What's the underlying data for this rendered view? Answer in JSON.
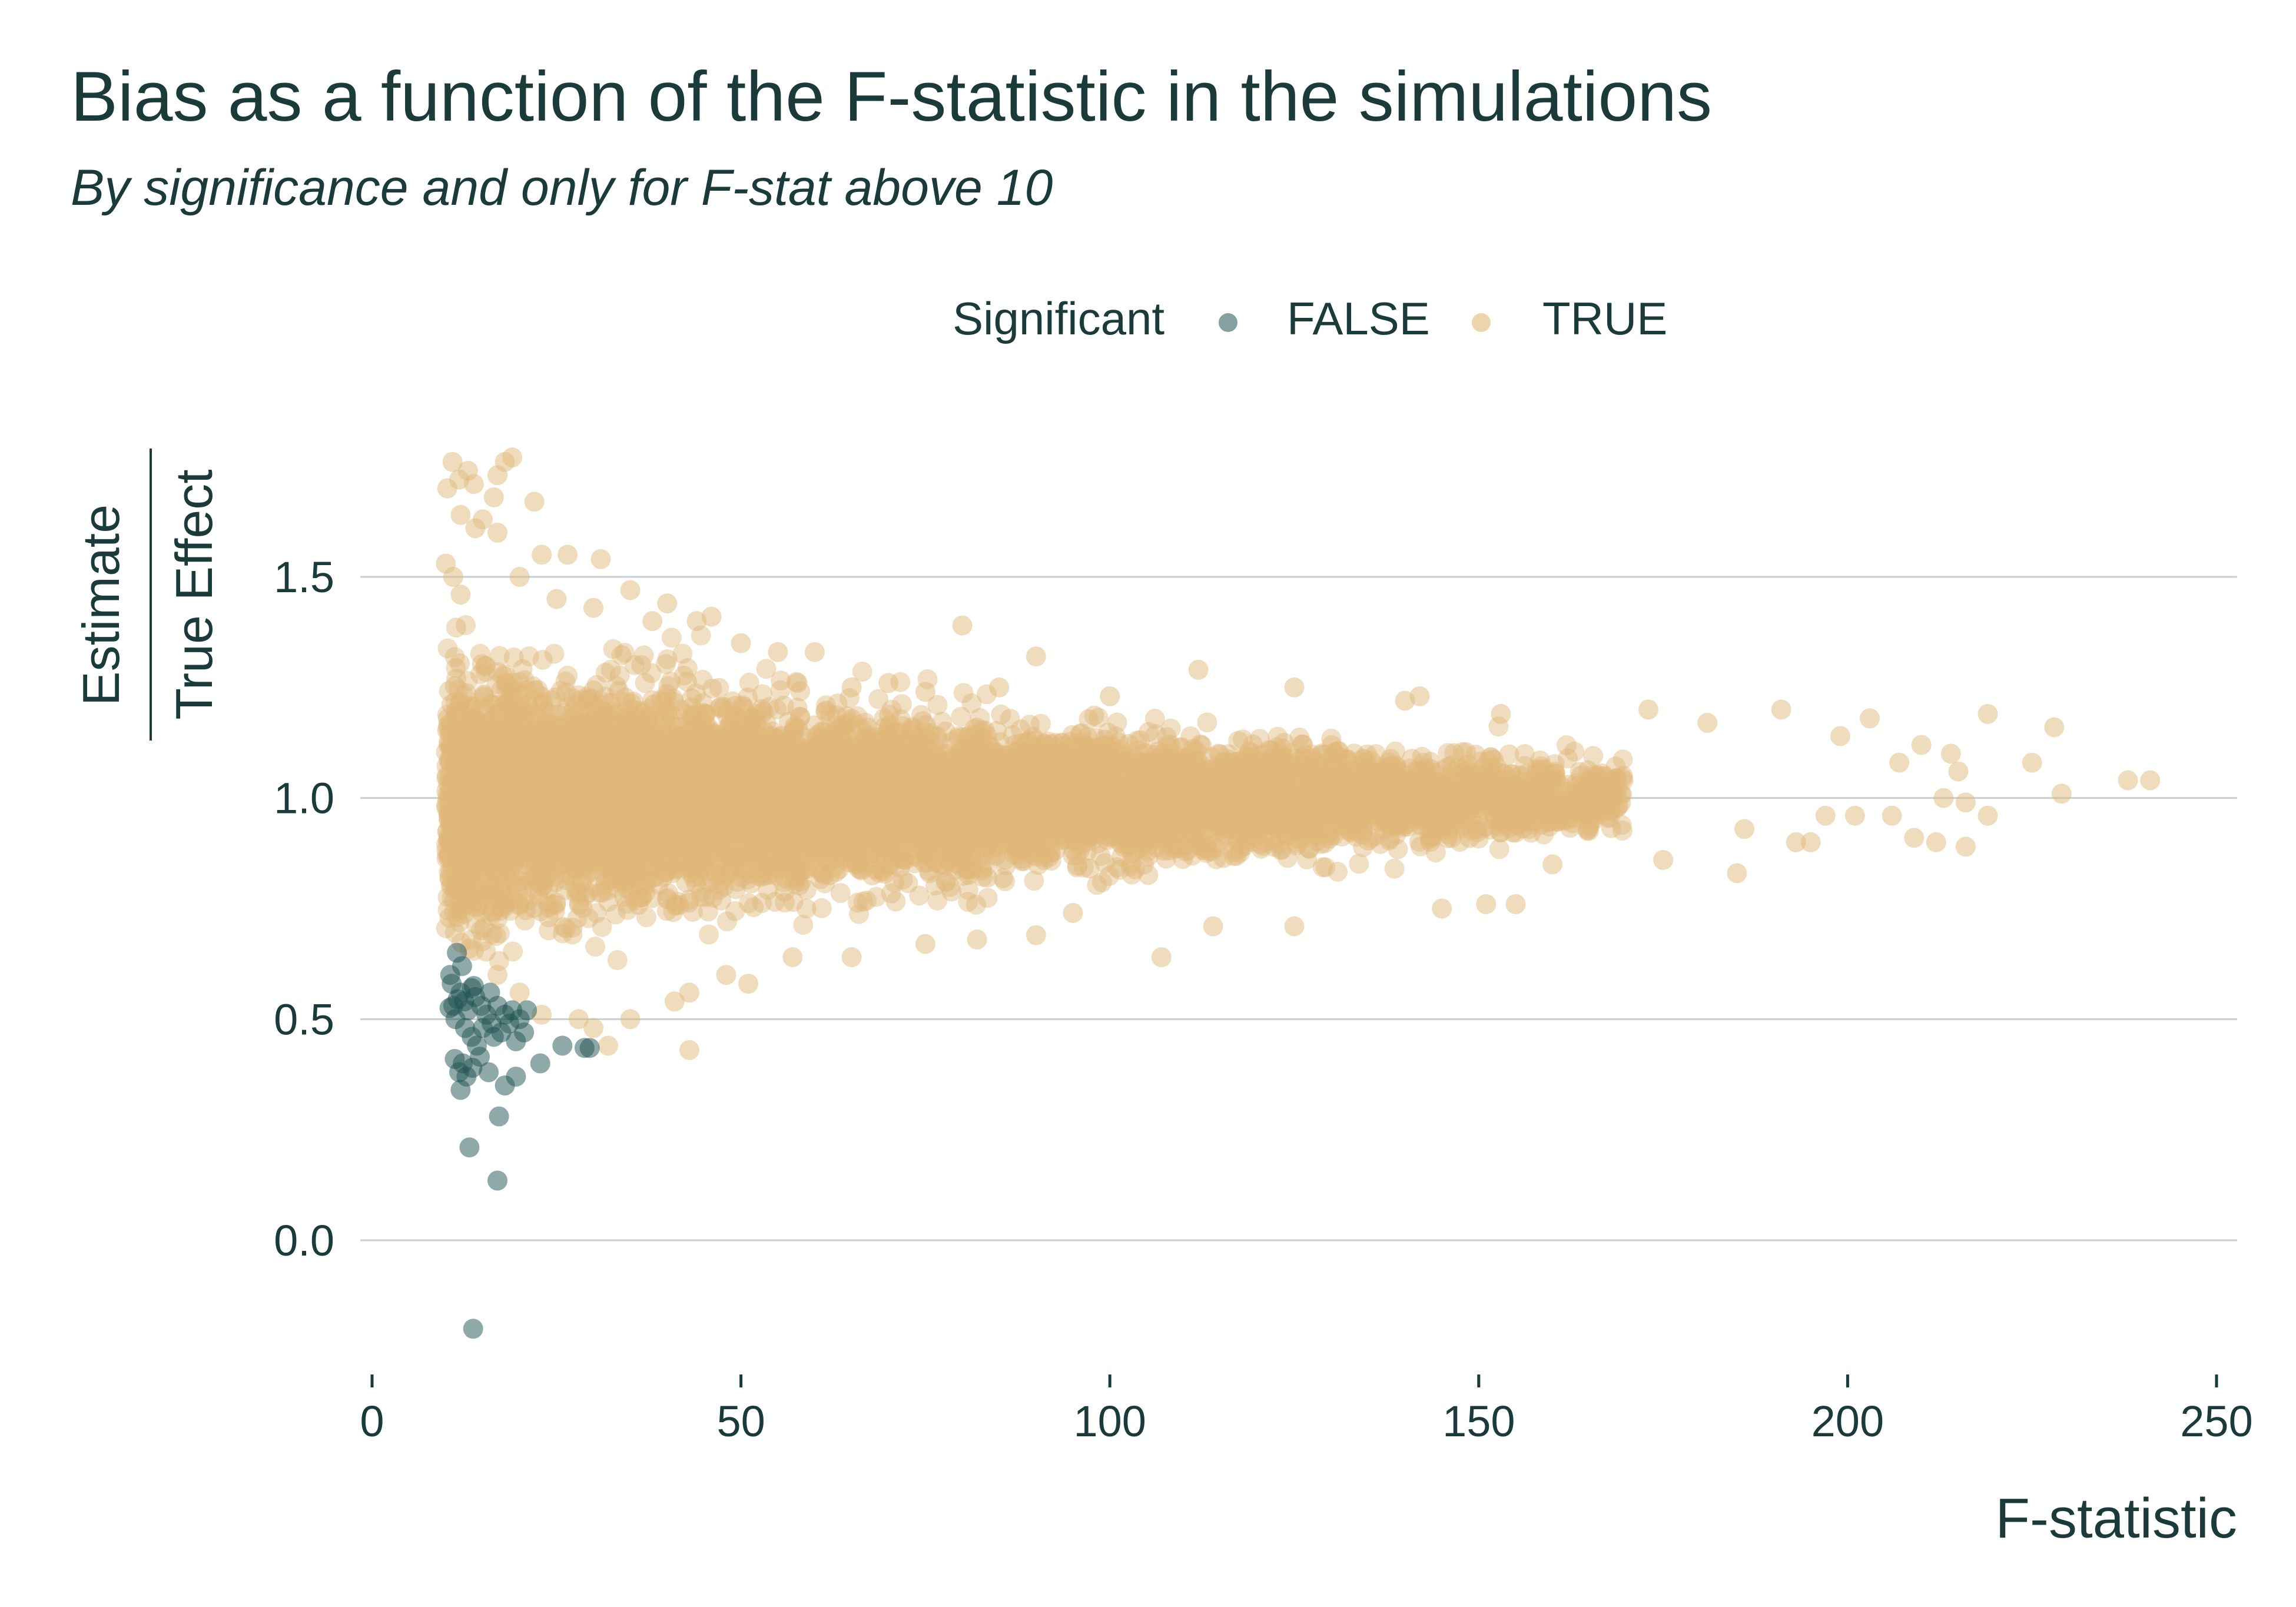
{
  "title": "Bias as a function of the F-statistic in the simulations",
  "subtitle": "By significance and only for F-stat above 10",
  "chart_data": {
    "type": "scatter",
    "title": "Bias as a function of the F-statistic in the simulations",
    "subtitle": "By significance and only for F-stat above 10",
    "xlabel": "F-statistic",
    "ylabel_numerator": "Estimate",
    "ylabel_denominator": "True Effect",
    "xlim": [
      0,
      250
    ],
    "ylim": [
      -0.25,
      1.8
    ],
    "x_ticks": [
      0,
      50,
      100,
      150,
      200,
      250
    ],
    "x_tick_labels": [
      "0",
      "50",
      "100",
      "150",
      "200",
      "250"
    ],
    "y_ticks": [
      0.0,
      0.5,
      1.0,
      1.5
    ],
    "y_tick_labels": [
      "0.0",
      "0.5",
      "1.0",
      "1.5"
    ],
    "grid": "horizontal",
    "legend": {
      "title": "Significant",
      "placement": "top",
      "entries": [
        "FALSE",
        "TRUE"
      ]
    },
    "colors": {
      "FALSE": "#1f5252",
      "TRUE": "#e0b97a",
      "grid": "#c4d1d1",
      "text": "#1b3a3a"
    },
    "series": [
      {
        "name": "FALSE",
        "points": [
          [
            11.5,
            0.65
          ],
          [
            10.6,
            0.6
          ],
          [
            10.8,
            0.58
          ],
          [
            11.0,
            0.53
          ],
          [
            11.3,
            0.5
          ],
          [
            12.0,
            0.56
          ],
          [
            12.5,
            0.54
          ],
          [
            13.0,
            0.52
          ],
          [
            13.5,
            0.57
          ],
          [
            12.2,
            0.62
          ],
          [
            14.0,
            0.55
          ],
          [
            14.8,
            0.53
          ],
          [
            15.5,
            0.51
          ],
          [
            16.2,
            0.49
          ],
          [
            17.0,
            0.53
          ],
          [
            18.0,
            0.51
          ],
          [
            19.0,
            0.52
          ],
          [
            20.0,
            0.5
          ],
          [
            21.0,
            0.52
          ],
          [
            15.0,
            0.48
          ],
          [
            13.5,
            0.46
          ],
          [
            14.2,
            0.44
          ],
          [
            16.5,
            0.46
          ],
          [
            19.5,
            0.45
          ],
          [
            17.5,
            0.47
          ],
          [
            11.2,
            0.41
          ],
          [
            12.3,
            0.4
          ],
          [
            11.8,
            0.38
          ],
          [
            12.8,
            0.37
          ],
          [
            13.6,
            0.39
          ],
          [
            15.8,
            0.38
          ],
          [
            18.0,
            0.35
          ],
          [
            19.5,
            0.37
          ],
          [
            12.0,
            0.34
          ],
          [
            22.8,
            0.4
          ],
          [
            25.8,
            0.44
          ],
          [
            28.8,
            0.435
          ],
          [
            29.5,
            0.435
          ],
          [
            17.2,
            0.28
          ],
          [
            13.2,
            0.21
          ],
          [
            17.0,
            0.135
          ],
          [
            13.7,
            -0.2
          ],
          [
            10.5,
            0.525
          ],
          [
            11.6,
            0.545
          ],
          [
            13.8,
            0.575
          ],
          [
            12.6,
            0.48
          ],
          [
            14.6,
            0.415
          ],
          [
            20.6,
            0.47
          ],
          [
            16.0,
            0.56
          ],
          [
            18.6,
            0.49
          ]
        ]
      },
      {
        "name": "TRUE",
        "points": [
          [
            10.2,
            1.7
          ],
          [
            10.9,
            1.76
          ],
          [
            11.8,
            1.72
          ],
          [
            13.0,
            1.74
          ],
          [
            13.8,
            1.71
          ],
          [
            18.0,
            1.76
          ],
          [
            19.0,
            1.77
          ],
          [
            17.0,
            1.73
          ],
          [
            16.5,
            1.68
          ],
          [
            12.0,
            1.64
          ],
          [
            15.0,
            1.63
          ],
          [
            14.0,
            1.61
          ],
          [
            17.0,
            1.6
          ],
          [
            22.0,
            1.67
          ],
          [
            23.0,
            1.55
          ],
          [
            26.5,
            1.55
          ],
          [
            31.0,
            1.54
          ],
          [
            10.0,
            1.53
          ],
          [
            11.0,
            1.5
          ],
          [
            12.0,
            1.46
          ],
          [
            20.0,
            1.5
          ],
          [
            25.0,
            1.45
          ],
          [
            30.0,
            1.43
          ],
          [
            35.0,
            1.47
          ],
          [
            38.0,
            1.4
          ],
          [
            40.0,
            1.44
          ],
          [
            44.0,
            1.4
          ],
          [
            46.0,
            1.41
          ],
          [
            50.0,
            1.35
          ],
          [
            55.0,
            1.33
          ],
          [
            60.0,
            1.33
          ],
          [
            65.0,
            1.25
          ],
          [
            70.0,
            1.26
          ],
          [
            75.0,
            1.24
          ],
          [
            80.0,
            1.39
          ],
          [
            85.0,
            1.25
          ],
          [
            90.0,
            1.32
          ],
          [
            100.0,
            1.23
          ],
          [
            112.0,
            1.29
          ],
          [
            125.0,
            1.25
          ],
          [
            140.0,
            1.22
          ],
          [
            142.0,
            1.23
          ],
          [
            153.0,
            1.19
          ],
          [
            173.0,
            1.2
          ],
          [
            181.0,
            1.17
          ],
          [
            191.0,
            1.2
          ],
          [
            199.0,
            1.14
          ],
          [
            203.0,
            1.18
          ],
          [
            210.0,
            1.12
          ],
          [
            214.0,
            1.1
          ],
          [
            219.0,
            1.19
          ],
          [
            225.0,
            1.08
          ],
          [
            228.0,
            1.16
          ],
          [
            207.0,
            1.08
          ],
          [
            215.0,
            1.06
          ],
          [
            213.0,
            1.0
          ],
          [
            216.0,
            0.99
          ],
          [
            219.0,
            0.96
          ],
          [
            229.0,
            1.01
          ],
          [
            238.0,
            1.04
          ],
          [
            241.0,
            1.04
          ],
          [
            206.0,
            0.96
          ],
          [
            209.0,
            0.91
          ],
          [
            212.0,
            0.9
          ],
          [
            216.0,
            0.89
          ],
          [
            197.0,
            0.96
          ],
          [
            201.0,
            0.96
          ],
          [
            193.0,
            0.9
          ],
          [
            195.0,
            0.9
          ],
          [
            186.0,
            0.93
          ],
          [
            185.0,
            0.83
          ],
          [
            175.0,
            0.86
          ],
          [
            160.0,
            0.85
          ],
          [
            155.0,
            0.76
          ],
          [
            151.0,
            0.76
          ],
          [
            145.0,
            0.75
          ],
          [
            125.0,
            0.71
          ],
          [
            114.0,
            0.71
          ],
          [
            107.0,
            0.64
          ],
          [
            95.0,
            0.74
          ],
          [
            90.0,
            0.69
          ],
          [
            82.0,
            0.68
          ],
          [
            75.0,
            0.67
          ],
          [
            65.0,
            0.64
          ],
          [
            57.0,
            0.64
          ],
          [
            51.0,
            0.58
          ],
          [
            48.0,
            0.6
          ],
          [
            43.0,
            0.56
          ],
          [
            41.0,
            0.54
          ],
          [
            35.0,
            0.5
          ],
          [
            30.0,
            0.48
          ],
          [
            28.0,
            0.5
          ],
          [
            23.0,
            0.51
          ],
          [
            20.0,
            0.56
          ],
          [
            17.0,
            0.6
          ],
          [
            32.0,
            0.44
          ],
          [
            43.0,
            0.43
          ]
        ]
      }
    ],
    "density": {
      "TRUE": {
        "x_range": [
          10,
          192
        ],
        "center_y": 1.0,
        "spread_at_x_min": 0.22,
        "spread_at_x_max": 0.05,
        "approx_count": 9000
      }
    }
  }
}
